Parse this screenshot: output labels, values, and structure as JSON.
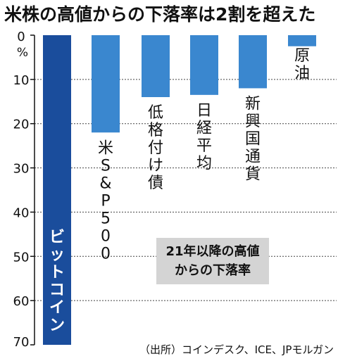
{
  "chart_data": {
    "type": "bar",
    "orientation": "vertical-downward",
    "title": "米株の高値からの下落率は2割を超えた",
    "ylabel": "%",
    "ylim": [
      0,
      70
    ],
    "yticks": [
      "0",
      "10",
      "20",
      "30",
      "40",
      "50",
      "60",
      "70"
    ],
    "grid": true,
    "categories": [
      "ビットコイン",
      "米S&P500",
      "低格付け債",
      "日経平均",
      "新興国通貨",
      "原油"
    ],
    "values": [
      70,
      22,
      14,
      13.5,
      12,
      2.5
    ],
    "annotation": [
      "21年以降の高値",
      "からの下落率"
    ],
    "source": "（出所）コインデスク、ICE、JPモルガン",
    "colors": {
      "highlight": "#1a4d9c",
      "bar": "#3a87cf",
      "annotation_bg": "#d4d4d4"
    }
  }
}
